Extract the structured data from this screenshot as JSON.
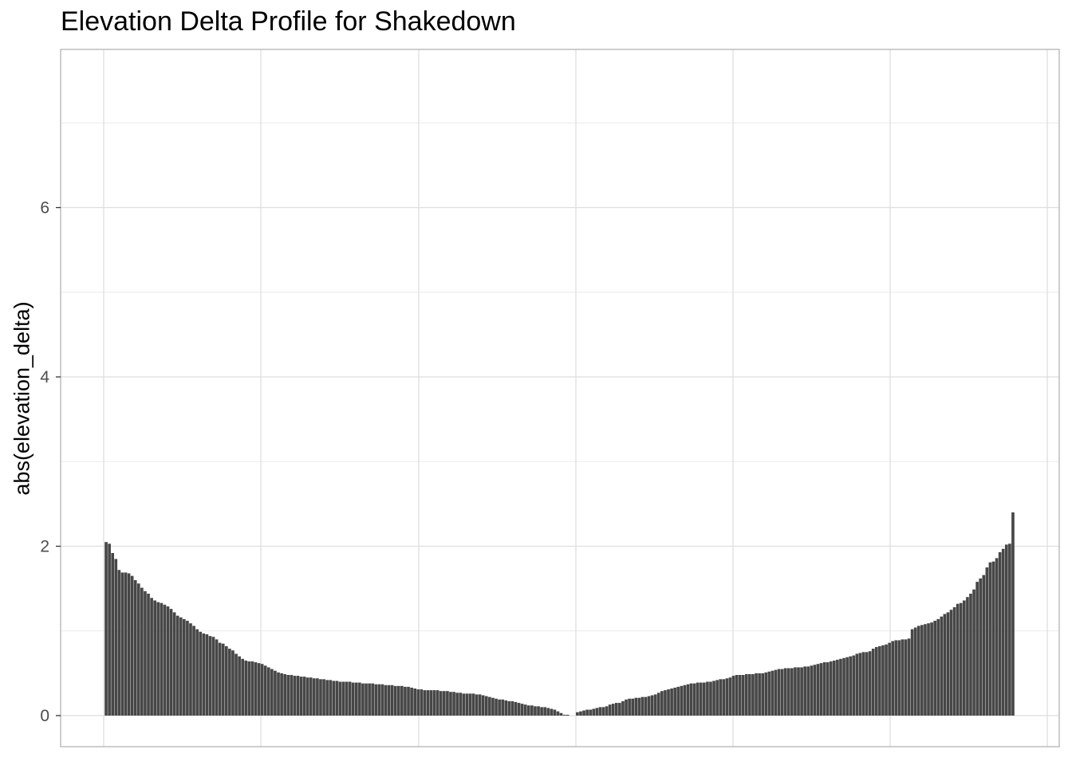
{
  "chart_data": {
    "type": "bar",
    "title": "Elevation Delta Profile for Shakedown",
    "xlabel": "",
    "ylabel": "abs(elevation_delta)",
    "ylim": [
      -0.35,
      7.85
    ],
    "yticks": [
      0,
      2,
      4,
      6
    ],
    "grid": true,
    "legend": "none",
    "bar_color": "#474747",
    "grid_color": "#dedede",
    "panel_border_color": "#b3b3b3",
    "series": [
      {
        "values": [
          2.05,
          2.03,
          1.92,
          1.85,
          1.72,
          1.69,
          1.69,
          1.68,
          1.65,
          1.6,
          1.56,
          1.51,
          1.47,
          1.44,
          1.39,
          1.36,
          1.34,
          1.33,
          1.31,
          1.29,
          1.26,
          1.22,
          1.18,
          1.16,
          1.14,
          1.12,
          1.09,
          1.06,
          1.02,
          0.99,
          0.97,
          0.96,
          0.94,
          0.93,
          0.9,
          0.86,
          0.85,
          0.82,
          0.79,
          0.77,
          0.73,
          0.7,
          0.67,
          0.65,
          0.64,
          0.64,
          0.63,
          0.62,
          0.61,
          0.59,
          0.57,
          0.55,
          0.53,
          0.51,
          0.5,
          0.49,
          0.48,
          0.48,
          0.47,
          0.47,
          0.46,
          0.46,
          0.45,
          0.45,
          0.44,
          0.44,
          0.43,
          0.43,
          0.42,
          0.42,
          0.41,
          0.41,
          0.4,
          0.4,
          0.4,
          0.4,
          0.39,
          0.39,
          0.39,
          0.38,
          0.38,
          0.38,
          0.38,
          0.37,
          0.37,
          0.37,
          0.36,
          0.36,
          0.36,
          0.35,
          0.35,
          0.35,
          0.34,
          0.34,
          0.33,
          0.32,
          0.31,
          0.31,
          0.3,
          0.3,
          0.3,
          0.3,
          0.3,
          0.29,
          0.29,
          0.29,
          0.28,
          0.28,
          0.27,
          0.27,
          0.26,
          0.26,
          0.26,
          0.26,
          0.25,
          0.25,
          0.24,
          0.23,
          0.22,
          0.21,
          0.2,
          0.19,
          0.19,
          0.18,
          0.17,
          0.17,
          0.16,
          0.15,
          0.14,
          0.13,
          0.12,
          0.12,
          0.11,
          0.11,
          0.1,
          0.1,
          0.09,
          0.08,
          0.07,
          0.05,
          0.03,
          0.01,
          0.01,
          0.0,
          0.0,
          0.04,
          0.05,
          0.06,
          0.07,
          0.07,
          0.08,
          0.09,
          0.1,
          0.1,
          0.11,
          0.13,
          0.14,
          0.15,
          0.15,
          0.17,
          0.19,
          0.2,
          0.2,
          0.21,
          0.21,
          0.22,
          0.22,
          0.23,
          0.24,
          0.25,
          0.27,
          0.29,
          0.3,
          0.31,
          0.32,
          0.33,
          0.34,
          0.35,
          0.36,
          0.37,
          0.38,
          0.38,
          0.39,
          0.39,
          0.39,
          0.4,
          0.4,
          0.41,
          0.42,
          0.43,
          0.43,
          0.44,
          0.45,
          0.47,
          0.48,
          0.48,
          0.48,
          0.49,
          0.49,
          0.49,
          0.5,
          0.5,
          0.5,
          0.51,
          0.52,
          0.53,
          0.54,
          0.55,
          0.55,
          0.56,
          0.56,
          0.56,
          0.57,
          0.57,
          0.57,
          0.58,
          0.58,
          0.59,
          0.6,
          0.61,
          0.62,
          0.63,
          0.63,
          0.64,
          0.65,
          0.66,
          0.67,
          0.68,
          0.69,
          0.7,
          0.71,
          0.73,
          0.74,
          0.75,
          0.75,
          0.76,
          0.79,
          0.81,
          0.82,
          0.83,
          0.84,
          0.86,
          0.88,
          0.89,
          0.89,
          0.9,
          0.9,
          0.91,
          1.02,
          1.04,
          1.06,
          1.07,
          1.08,
          1.09,
          1.1,
          1.12,
          1.14,
          1.17,
          1.2,
          1.22,
          1.25,
          1.28,
          1.32,
          1.33,
          1.36,
          1.4,
          1.44,
          1.49,
          1.58,
          1.62,
          1.66,
          1.75,
          1.81,
          1.82,
          1.86,
          1.93,
          1.97,
          2.02,
          2.03,
          2.4
        ]
      }
    ]
  }
}
